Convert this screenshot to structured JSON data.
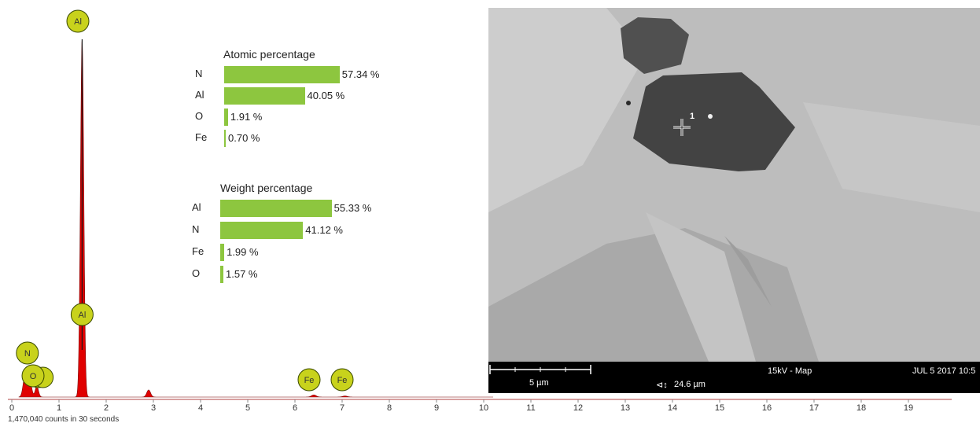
{
  "chart_data": [
    {
      "type": "line",
      "xlim": [
        0,
        20
      ],
      "x_ticks": [
        "0",
        "1",
        "2",
        "3",
        "4",
        "5",
        "6",
        "7",
        "8",
        "9",
        "10",
        "11",
        "12",
        "13",
        "14",
        "15",
        "16",
        "17",
        "18",
        "19"
      ],
      "counts_caption": "1,470,040 counts in 30 seconds",
      "series_color": "#e00000",
      "peaks": [
        {
          "x": 0.28,
          "y": 0.06
        },
        {
          "x": 0.39,
          "y": 0.04
        },
        {
          "x": 0.53,
          "y": 0.03
        },
        {
          "x": 1.49,
          "y": 1.0
        },
        {
          "x": 2.9,
          "y": 0.02
        },
        {
          "x": 6.4,
          "y": 0.006
        },
        {
          "x": 7.06,
          "y": 0.003
        }
      ],
      "element_markers": [
        "Al",
        "Al",
        "N",
        "O",
        "Fe",
        "Fe"
      ],
      "marker_color": "#c8d21c"
    },
    {
      "type": "bar",
      "title": "Atomic percentage",
      "categories": [
        "N",
        "Al",
        "O",
        "Fe"
      ],
      "values": [
        57.34,
        40.05,
        1.91,
        0.7
      ],
      "value_labels": [
        "57.34 %",
        "40.05 %",
        "1.91 %",
        "0.70 %"
      ],
      "color": "#8dc63f"
    },
    {
      "type": "bar",
      "title": "Weight percentage",
      "categories": [
        "Al",
        "N",
        "Fe",
        "O"
      ],
      "values": [
        55.33,
        41.12,
        1.99,
        1.57
      ],
      "value_labels": [
        "55.33 %",
        "41.12 %",
        "1.99 %",
        "1.57 %"
      ],
      "color": "#8dc63f"
    }
  ],
  "sem_image": {
    "scale_label": "5 µm",
    "hfw_label": "24.6 µm",
    "mode_label": "15kV - Map",
    "date_label": "JUL 5 2017 10:5",
    "point_label": "1"
  }
}
